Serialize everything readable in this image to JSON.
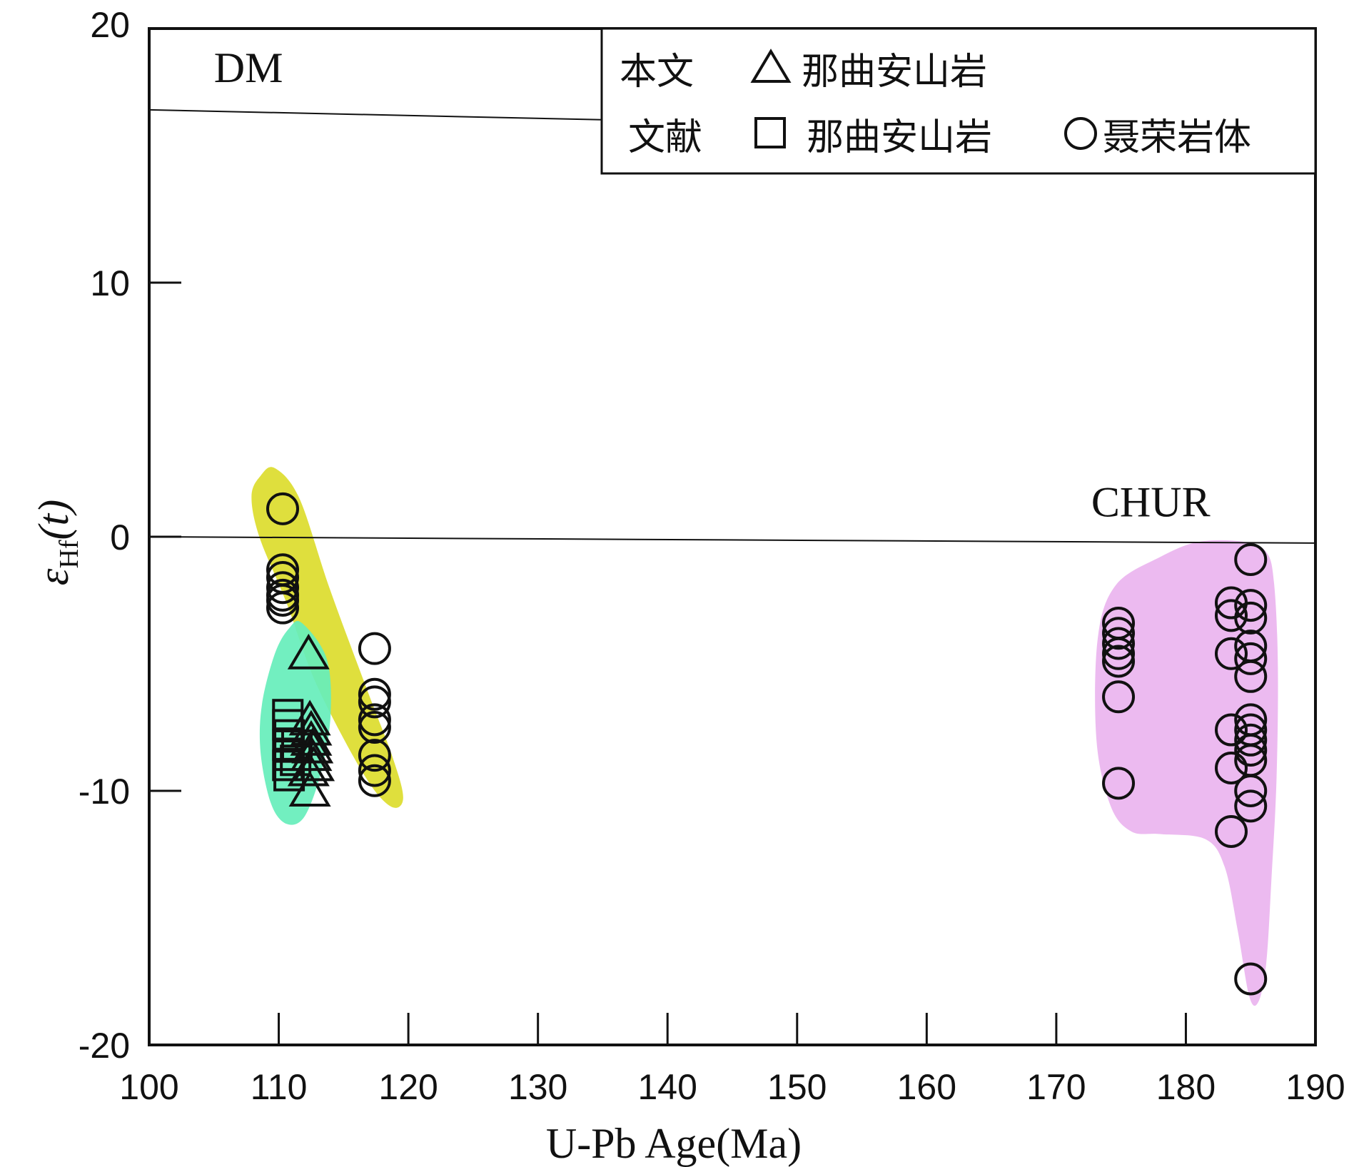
{
  "chart_data": {
    "type": "scatter",
    "title": "",
    "xlabel": "U-Pb Age(Ma)",
    "ylabel_symbol": "ε",
    "ylabel_sub": "Hf",
    "ylabel_suffix": "(t)",
    "xlim": [
      100,
      190
    ],
    "ylim": [
      -20,
      20
    ],
    "xticks": [
      100,
      110,
      120,
      130,
      140,
      150,
      160,
      170,
      180,
      190
    ],
    "yticks": [
      -20,
      -10,
      0,
      10,
      20
    ],
    "grid": false,
    "legend_position": "top-right",
    "legend": {
      "row1_label": "本文",
      "row2_label": "文献",
      "entries": [
        {
          "row": 1,
          "marker": "triangle",
          "text": "那曲安山岩"
        },
        {
          "row": 2,
          "marker": "square",
          "text": "那曲安山岩"
        },
        {
          "row": 2,
          "marker": "circle",
          "text": "聂荣岩体"
        }
      ]
    },
    "reference_lines": [
      {
        "label": "DM",
        "x": [
          100,
          190
        ],
        "y": [
          16.8,
          15.8
        ]
      },
      {
        "label": "CHUR",
        "x": [
          100,
          190
        ],
        "y": [
          0,
          -0.25
        ]
      }
    ],
    "fields": [
      {
        "color": "#dcdc2c",
        "points": [
          [
            109.7,
            2.7
          ],
          [
            111.6,
            1.5
          ],
          [
            113.9,
            -2.0
          ],
          [
            116.8,
            -6.0
          ],
          [
            118.8,
            -8.7
          ],
          [
            119.6,
            -10.3
          ],
          [
            118.6,
            -10.6
          ],
          [
            116.5,
            -9.3
          ],
          [
            112.9,
            -5.8
          ],
          [
            110.6,
            -2.6
          ],
          [
            108.5,
            0.0
          ],
          [
            107.9,
            1.6
          ],
          [
            108.6,
            2.4
          ]
        ]
      },
      {
        "color": "#66eebb",
        "points": [
          [
            111.8,
            -3.4
          ],
          [
            113.7,
            -4.8
          ],
          [
            114.0,
            -7.0
          ],
          [
            113.3,
            -9.2
          ],
          [
            112.0,
            -11.0
          ],
          [
            110.6,
            -11.3
          ],
          [
            109.4,
            -10.5
          ],
          [
            108.6,
            -8.5
          ],
          [
            108.7,
            -6.6
          ],
          [
            109.7,
            -4.6
          ],
          [
            110.8,
            -3.6
          ]
        ]
      },
      {
        "color": "#eab4ef",
        "points": [
          [
            184.5,
            -0.2
          ],
          [
            186.2,
            -0.6
          ],
          [
            186.8,
            -1.8
          ],
          [
            187.1,
            -5.0
          ],
          [
            187.0,
            -9.5
          ],
          [
            186.6,
            -13.5
          ],
          [
            186.2,
            -16.8
          ],
          [
            185.6,
            -18.3
          ],
          [
            184.9,
            -18.1
          ],
          [
            184.0,
            -15.5
          ],
          [
            183.0,
            -13.0
          ],
          [
            181.5,
            -11.9
          ],
          [
            178.0,
            -11.7
          ],
          [
            175.8,
            -11.6
          ],
          [
            174.2,
            -10.6
          ],
          [
            173.1,
            -8.0
          ],
          [
            173.2,
            -4.0
          ],
          [
            174.6,
            -1.9
          ],
          [
            178.0,
            -0.8
          ],
          [
            181.0,
            -0.2
          ]
        ]
      }
    ],
    "series": [
      {
        "marker": "triangle",
        "points": [
          [
            112.3,
            -4.6
          ],
          [
            112.4,
            -7.2
          ],
          [
            112.5,
            -7.6
          ],
          [
            112.5,
            -8.0
          ],
          [
            112.6,
            -8.3
          ],
          [
            112.5,
            -8.6
          ],
          [
            112.7,
            -9.0
          ],
          [
            112.3,
            -9.2
          ],
          [
            112.4,
            -10.0
          ]
        ]
      },
      {
        "marker": "square",
        "points": [
          [
            110.7,
            -7.0
          ],
          [
            110.7,
            -7.4
          ],
          [
            110.8,
            -7.8
          ],
          [
            110.7,
            -8.2
          ],
          [
            110.8,
            -8.6
          ],
          [
            110.7,
            -9.0
          ],
          [
            110.8,
            -9.4
          ],
          [
            111.4,
            -8.2
          ],
          [
            111.3,
            -8.8
          ]
        ]
      },
      {
        "marker": "circle",
        "points": [
          [
            110.3,
            1.1
          ],
          [
            110.3,
            -1.3
          ],
          [
            110.3,
            -1.6
          ],
          [
            110.3,
            -2.0
          ],
          [
            110.3,
            -2.3
          ],
          [
            110.3,
            -2.5
          ],
          [
            110.3,
            -2.8
          ],
          [
            117.4,
            -4.4
          ],
          [
            117.4,
            -6.2
          ],
          [
            117.4,
            -6.5
          ],
          [
            117.4,
            -7.2
          ],
          [
            117.4,
            -7.5
          ],
          [
            117.4,
            -8.6
          ],
          [
            117.4,
            -9.2
          ],
          [
            117.4,
            -9.6
          ],
          [
            174.8,
            -3.4
          ],
          [
            174.8,
            -3.8
          ],
          [
            174.8,
            -4.2
          ],
          [
            174.8,
            -4.6
          ],
          [
            174.8,
            -4.9
          ],
          [
            174.8,
            -6.3
          ],
          [
            174.8,
            -9.7
          ],
          [
            183.5,
            -2.6
          ],
          [
            183.5,
            -3.1
          ],
          [
            183.5,
            -4.6
          ],
          [
            183.5,
            -7.6
          ],
          [
            183.5,
            -9.1
          ],
          [
            183.5,
            -11.6
          ],
          [
            185.0,
            -0.9
          ],
          [
            185.0,
            -2.7
          ],
          [
            185.0,
            -3.2
          ],
          [
            185.0,
            -4.3
          ],
          [
            185.0,
            -4.8
          ],
          [
            185.0,
            -5.5
          ],
          [
            185.0,
            -7.2
          ],
          [
            185.0,
            -7.6
          ],
          [
            185.0,
            -8.0
          ],
          [
            185.0,
            -8.4
          ],
          [
            185.0,
            -8.8
          ],
          [
            185.0,
            -10.0
          ],
          [
            185.0,
            -10.6
          ],
          [
            185.0,
            -17.4
          ]
        ]
      }
    ]
  }
}
